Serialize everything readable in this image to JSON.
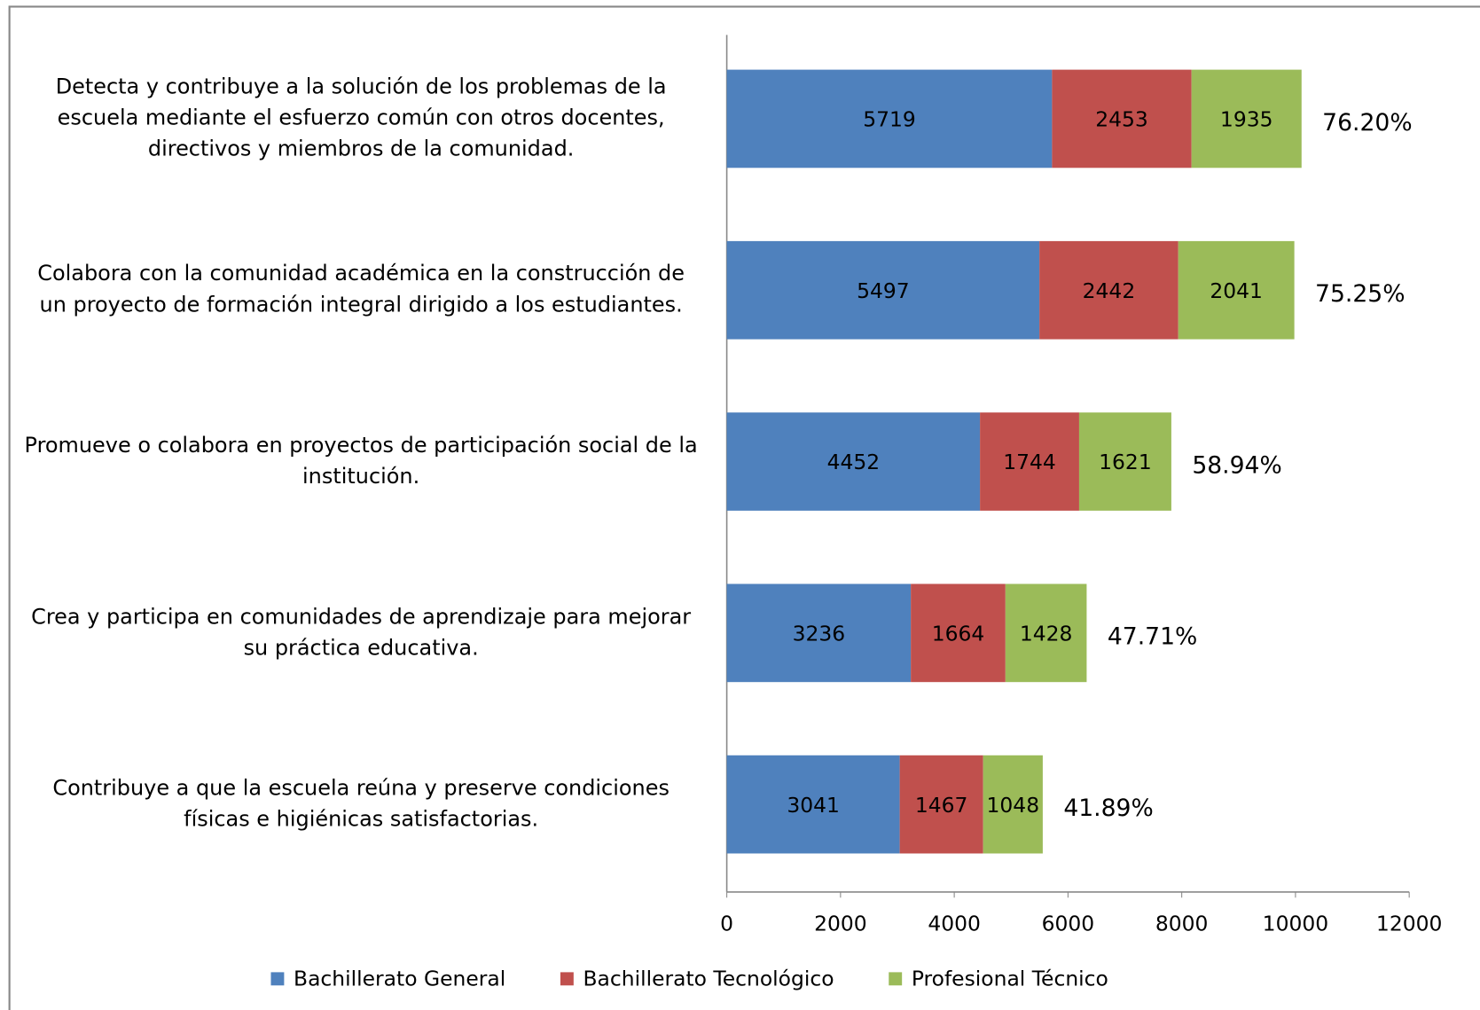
{
  "chart_data": {
    "type": "stacked_barh",
    "categories": [
      "Detecta y contribuye a la solución de los problemas de la escuela mediante el esfuerzo común con otros docentes, directivos y miembros de la comunidad.",
      "Colabora con la comunidad académica en la construcción de un proyecto de formación integral dirigido a los estudiantes.",
      "Promueve o colabora en proyectos de participación social de la institución.",
      "Crea y participa en comunidades de aprendizaje para mejorar su práctica educativa.",
      "Contribuye a que la escuela reúna y preserve condiciones físicas e higiénicas satisfactorias."
    ],
    "series": [
      {
        "name": "Bachillerato General",
        "color": "#4f81bd",
        "values": [
          5719,
          5497,
          4452,
          3236,
          3041
        ]
      },
      {
        "name": "Bachillerato Tecnológico",
        "color": "#c0504d",
        "values": [
          2453,
          2442,
          1744,
          1664,
          1467
        ]
      },
      {
        "name": "Profesional Técnico",
        "color": "#9bbb59",
        "values": [
          1935,
          2041,
          1621,
          1428,
          1048
        ]
      }
    ],
    "annotations": [
      "76.20%",
      "75.25%",
      "58.94%",
      "47.71%",
      "41.89%"
    ],
    "xlim": [
      0,
      12000
    ],
    "xticks": [
      0,
      2000,
      4000,
      6000,
      8000,
      10000,
      12000
    ],
    "legend": "bottom"
  }
}
